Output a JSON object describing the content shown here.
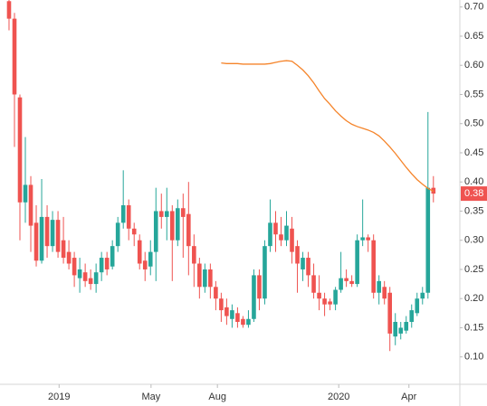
{
  "chart_data": {
    "type": "candlestick",
    "up_color": "#26a69a",
    "down_color": "#ef5350",
    "open": [
      0.71,
      0.68,
      0.545,
      0.365,
      0.395,
      0.33,
      0.265,
      0.34,
      0.29,
      0.335,
      0.3,
      0.28,
      0.27,
      0.235,
      0.245,
      0.235,
      0.225,
      0.245,
      0.27,
      0.255,
      0.29,
      0.33,
      0.36,
      0.32,
      0.3,
      0.265,
      0.255,
      0.28,
      0.35,
      0.34,
      0.35,
      0.3,
      0.355,
      0.345,
      0.29,
      0.26,
      0.22,
      0.25,
      0.22,
      0.2,
      0.185,
      0.165,
      0.175,
      0.165,
      0.155,
      0.165,
      0.24,
      0.2,
      0.29,
      0.33,
      0.31,
      0.3,
      0.32,
      0.29,
      0.25,
      0.27,
      0.24,
      0.21,
      0.2,
      0.195,
      0.19,
      0.215,
      0.235,
      0.23,
      0.225,
      0.3,
      0.305,
      0.3,
      0.21,
      0.22,
      0.21,
      0.135,
      0.14,
      0.145,
      0.16,
      0.175,
      0.2,
      0.21,
      0.39
    ],
    "high": [
      0.72,
      0.69,
      0.55,
      0.477,
      0.41,
      0.36,
      0.405,
      0.36,
      0.35,
      0.35,
      0.34,
      0.3,
      0.28,
      0.27,
      0.26,
      0.25,
      0.26,
      0.28,
      0.28,
      0.3,
      0.34,
      0.42,
      0.37,
      0.33,
      0.31,
      0.28,
      0.3,
      0.39,
      0.38,
      0.39,
      0.36,
      0.37,
      0.38,
      0.4,
      0.31,
      0.27,
      0.26,
      0.26,
      0.23,
      0.21,
      0.2,
      0.19,
      0.185,
      0.17,
      0.18,
      0.25,
      0.25,
      0.3,
      0.37,
      0.35,
      0.34,
      0.35,
      0.34,
      0.3,
      0.28,
      0.28,
      0.26,
      0.24,
      0.21,
      0.2,
      0.22,
      0.28,
      0.25,
      0.24,
      0.31,
      0.37,
      0.31,
      0.31,
      0.24,
      0.23,
      0.22,
      0.175,
      0.16,
      0.17,
      0.19,
      0.21,
      0.22,
      0.52,
      0.41
    ],
    "low": [
      0.66,
      0.46,
      0.3,
      0.33,
      0.28,
      0.255,
      0.26,
      0.27,
      0.28,
      0.27,
      0.26,
      0.25,
      0.22,
      0.21,
      0.22,
      0.215,
      0.21,
      0.23,
      0.24,
      0.25,
      0.28,
      0.32,
      0.3,
      0.29,
      0.25,
      0.23,
      0.24,
      0.23,
      0.32,
      0.3,
      0.23,
      0.29,
      0.27,
      0.24,
      0.22,
      0.2,
      0.21,
      0.2,
      0.18,
      0.16,
      0.155,
      0.15,
      0.15,
      0.15,
      0.15,
      0.16,
      0.18,
      0.19,
      0.28,
      0.28,
      0.29,
      0.29,
      0.26,
      0.21,
      0.23,
      0.22,
      0.2,
      0.18,
      0.17,
      0.18,
      0.18,
      0.21,
      0.22,
      0.22,
      0.22,
      0.29,
      0.28,
      0.2,
      0.19,
      0.19,
      0.11,
      0.12,
      0.13,
      0.14,
      0.15,
      0.17,
      0.19,
      0.2,
      0.365
    ],
    "close": [
      0.68,
      0.55,
      0.365,
      0.395,
      0.325,
      0.265,
      0.34,
      0.29,
      0.335,
      0.28,
      0.27,
      0.26,
      0.24,
      0.25,
      0.23,
      0.225,
      0.245,
      0.27,
      0.25,
      0.29,
      0.33,
      0.36,
      0.32,
      0.31,
      0.26,
      0.25,
      0.28,
      0.35,
      0.34,
      0.35,
      0.3,
      0.355,
      0.34,
      0.29,
      0.26,
      0.22,
      0.25,
      0.22,
      0.2,
      0.18,
      0.17,
      0.18,
      0.16,
      0.155,
      0.165,
      0.24,
      0.2,
      0.29,
      0.33,
      0.31,
      0.3,
      0.325,
      0.28,
      0.26,
      0.27,
      0.24,
      0.21,
      0.2,
      0.19,
      0.19,
      0.215,
      0.235,
      0.23,
      0.225,
      0.3,
      0.305,
      0.3,
      0.21,
      0.23,
      0.2,
      0.14,
      0.16,
      0.15,
      0.16,
      0.18,
      0.2,
      0.21,
      0.39,
      0.38
    ],
    "ma": {
      "color": "#f5842a",
      "values": [
        null,
        null,
        null,
        null,
        null,
        null,
        null,
        null,
        null,
        null,
        null,
        null,
        null,
        null,
        null,
        null,
        null,
        null,
        null,
        null,
        null,
        null,
        null,
        null,
        null,
        null,
        null,
        null,
        null,
        null,
        null,
        null,
        null,
        null,
        null,
        null,
        null,
        null,
        null,
        0.604,
        0.603,
        0.603,
        0.603,
        0.602,
        0.602,
        0.602,
        0.602,
        0.602,
        0.603,
        0.605,
        0.607,
        0.608,
        0.607,
        0.6,
        0.592,
        0.582,
        0.57,
        0.556,
        0.543,
        0.533,
        0.522,
        0.513,
        0.505,
        0.499,
        0.495,
        0.492,
        0.489,
        0.485,
        0.479,
        0.47,
        0.46,
        0.449,
        0.437,
        0.425,
        0.414,
        0.404,
        0.396,
        0.389,
        0.384
      ]
    },
    "xlim": [
      -1.66,
      82.86
    ],
    "xticks": [
      {
        "value": 9.2,
        "label": "2019"
      },
      {
        "value": 26.1,
        "label": "May"
      },
      {
        "value": 38.3,
        "label": "Aug"
      },
      {
        "value": 60.6,
        "label": "2020"
      },
      {
        "value": 73.5,
        "label": "Apr"
      }
    ],
    "ylim": [
      0.053,
      0.712
    ],
    "yticks": [
      {
        "value": 0.7,
        "label": "0.70"
      },
      0.65,
      {
        "value": 0.6,
        "label": "0.60"
      },
      0.55,
      {
        "value": 0.5,
        "label": "0.50"
      },
      0.45,
      {
        "value": 0.4,
        "label": "0.40"
      },
      0.35,
      {
        "value": 0.3,
        "label": "0.30"
      },
      0.25,
      {
        "value": 0.2,
        "label": "0.20"
      },
      0.15,
      {
        "value": 0.1,
        "label": "0.10"
      }
    ],
    "last_price": 0.38
  }
}
